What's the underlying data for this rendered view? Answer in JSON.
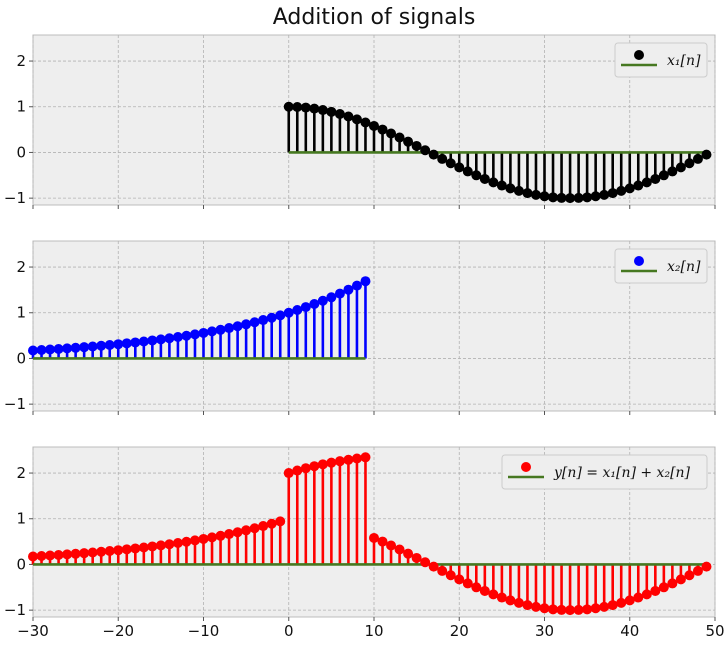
{
  "chart_data": {
    "type": "stem",
    "title": "Addition of signals",
    "xlim": [
      -30,
      50
    ],
    "ylim": [
      -1.15,
      2.57
    ],
    "xticks": [
      -30,
      -20,
      -10,
      0,
      10,
      20,
      30,
      40,
      50
    ],
    "xtick_labels": [
      "−30",
      "−20",
      "−10",
      "0",
      "10",
      "20",
      "30",
      "40",
      "50"
    ],
    "yticks": [
      -1,
      0,
      1,
      2
    ],
    "ytick_labels": [
      "−1",
      "0",
      "1",
      "2"
    ],
    "grid": true,
    "baseline_color": "#467821",
    "subplots": [
      {
        "legend": "x₁[n]",
        "legend_placement": "top-right",
        "color": "#000000",
        "n_start": 0,
        "values": [
          1.0,
          0.995,
          0.982,
          0.959,
          0.928,
          0.889,
          0.841,
          0.786,
          0.724,
          0.655,
          0.58,
          0.5,
          0.415,
          0.327,
          0.236,
          0.142,
          0.048,
          -0.048,
          -0.142,
          -0.236,
          -0.327,
          -0.415,
          -0.5,
          -0.58,
          -0.655,
          -0.724,
          -0.786,
          -0.841,
          -0.889,
          -0.928,
          -0.959,
          -0.982,
          -0.995,
          -1.0,
          -0.995,
          -0.982,
          -0.959,
          -0.928,
          -0.889,
          -0.841,
          -0.786,
          -0.724,
          -0.655,
          -0.58,
          -0.5,
          -0.415,
          -0.327,
          -0.236,
          -0.142,
          -0.048
        ]
      },
      {
        "legend": "x₂[n]",
        "legend_placement": "top-right",
        "color": "#0000ff",
        "n_start": -30,
        "values": [
          0.174,
          0.185,
          0.196,
          0.207,
          0.22,
          0.233,
          0.247,
          0.262,
          0.278,
          0.294,
          0.312,
          0.331,
          0.35,
          0.371,
          0.394,
          0.417,
          0.442,
          0.469,
          0.497,
          0.527,
          0.558,
          0.592,
          0.627,
          0.665,
          0.705,
          0.747,
          0.792,
          0.84,
          0.89,
          0.943,
          1.0,
          1.06,
          1.124,
          1.191,
          1.263,
          1.338,
          1.419,
          1.504,
          1.594,
          1.69
        ]
      },
      {
        "legend": "y[n] = x₁[n] + x₂[n]",
        "legend_placement": "top-right",
        "color": "#ff0000",
        "n_start": -30,
        "values": [
          0.174,
          0.185,
          0.196,
          0.207,
          0.22,
          0.233,
          0.247,
          0.262,
          0.278,
          0.294,
          0.312,
          0.331,
          0.35,
          0.371,
          0.394,
          0.417,
          0.442,
          0.469,
          0.497,
          0.527,
          0.558,
          0.592,
          0.627,
          0.665,
          0.705,
          0.747,
          0.792,
          0.84,
          0.89,
          0.943,
          2.0,
          2.055,
          2.106,
          2.15,
          2.191,
          2.227,
          2.26,
          2.29,
          2.318,
          2.345,
          0.58,
          0.5,
          0.415,
          0.327,
          0.236,
          0.142,
          0.048,
          -0.048,
          -0.142,
          -0.236,
          -0.327,
          -0.415,
          -0.5,
          -0.58,
          -0.655,
          -0.724,
          -0.786,
          -0.841,
          -0.889,
          -0.928,
          -0.959,
          -0.982,
          -0.995,
          -1.0,
          -0.995,
          -0.982,
          -0.959,
          -0.928,
          -0.889,
          -0.841,
          -0.786,
          -0.724,
          -0.655,
          -0.58,
          -0.5,
          -0.415,
          -0.327,
          -0.236,
          -0.142,
          -0.048
        ]
      }
    ]
  }
}
